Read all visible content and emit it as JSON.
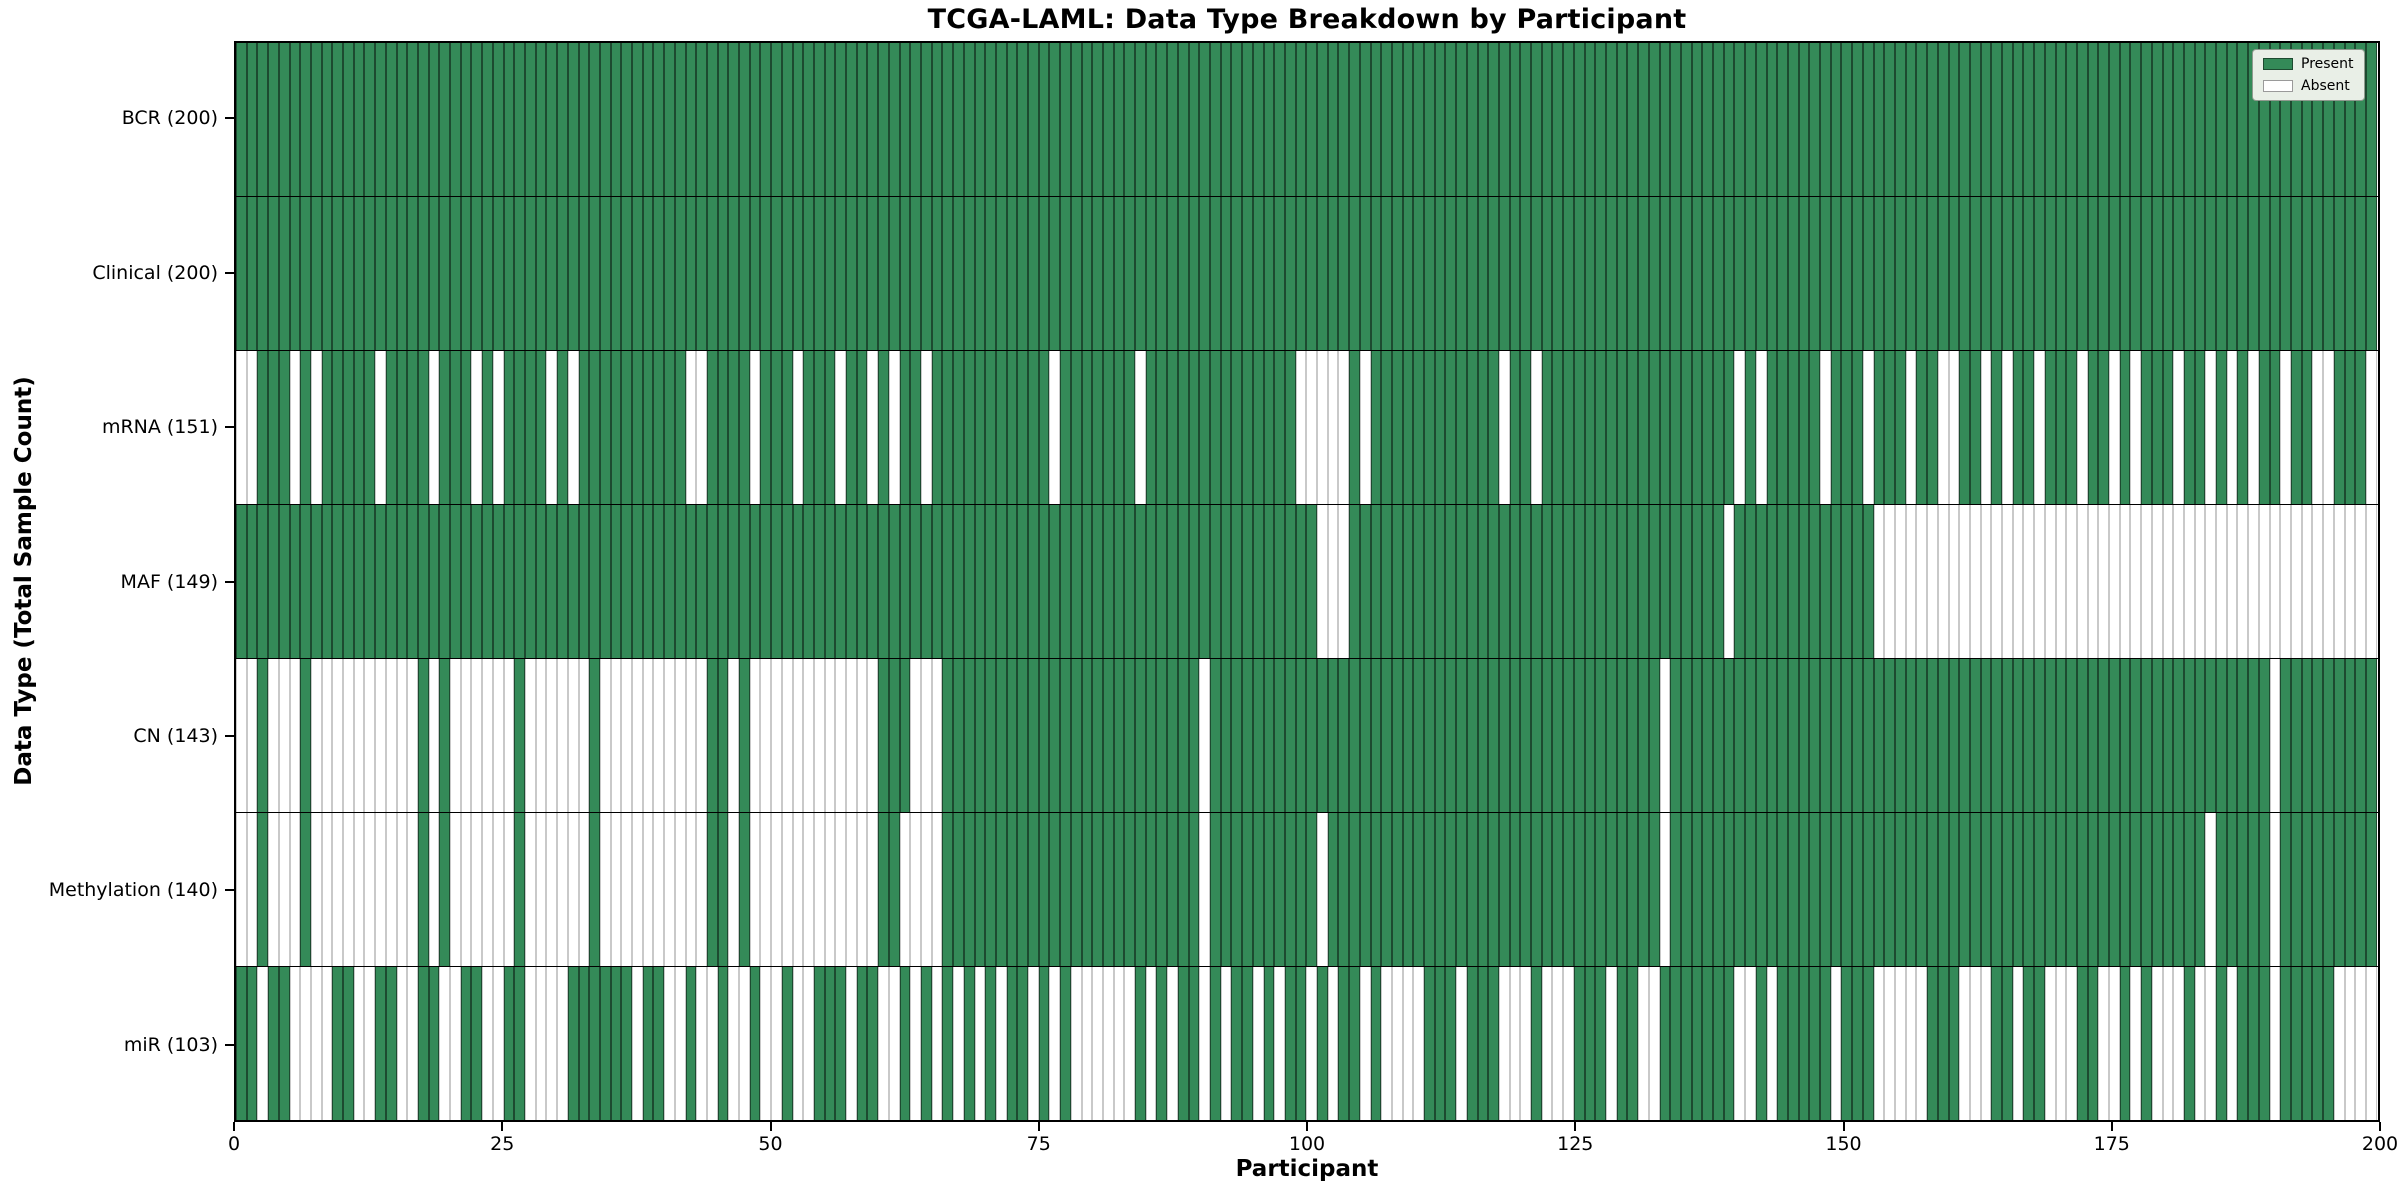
{
  "title": "TCGA-LAML: Data Type Breakdown by Participant",
  "legend": {
    "present_label": "Present",
    "absent_label": "Absent"
  },
  "chart_data": {
    "type": "heatmap",
    "title": "TCGA-LAML: Data Type Breakdown by Participant",
    "xlabel": "Participant",
    "ylabel": "Data Type (Total Sample Count)",
    "x_ticks": [
      0,
      25,
      50,
      75,
      100,
      125,
      150,
      175,
      200
    ],
    "x_range": [
      0,
      200
    ],
    "n_participants": 200,
    "grid": false,
    "legend_position": "upper right",
    "legend_entries": [
      "Present",
      "Absent"
    ],
    "colors": {
      "present": "#348a58",
      "absent": "#ffffff",
      "present_cell_edge": "#1d4a30",
      "absent_cell_edge": "#c9c9c9",
      "legend_background": "#e9efe7"
    },
    "rows": [
      {
        "label": "BCR (200)",
        "data_type": "BCR",
        "total_present": 200,
        "absent": []
      },
      {
        "label": "Clinical (200)",
        "data_type": "Clinical",
        "total_present": 200,
        "absent": []
      },
      {
        "label": "mRNA (151)",
        "data_type": "mRNA",
        "total_present": 151,
        "absent": [
          0,
          1,
          5,
          7,
          13,
          18,
          22,
          24,
          29,
          31,
          42,
          43,
          48,
          52,
          56,
          59,
          61,
          64,
          76,
          84,
          99,
          100,
          101,
          102,
          103,
          105,
          118,
          121,
          140,
          142,
          148,
          152,
          156,
          159,
          160,
          163,
          165,
          168,
          172,
          175,
          177,
          181,
          184,
          186,
          188,
          191,
          194,
          195,
          199
        ]
      },
      {
        "label": "MAF (149)",
        "data_type": "MAF",
        "total_present": 149,
        "absent": [
          101,
          102,
          103,
          139,
          153,
          154,
          155,
          156,
          157,
          158,
          159,
          160,
          161,
          162,
          163,
          164,
          165,
          166,
          167,
          168,
          169,
          170,
          171,
          172,
          173,
          174,
          175,
          176,
          177,
          178,
          179,
          180,
          181,
          182,
          183,
          184,
          185,
          186,
          187,
          188,
          189,
          190,
          191,
          192,
          193,
          194,
          195,
          196,
          197,
          198,
          199
        ]
      },
      {
        "label": "CN (143)",
        "data_type": "CN",
        "total_present": 143,
        "absent": [
          0,
          1,
          3,
          4,
          5,
          7,
          8,
          9,
          10,
          11,
          12,
          13,
          14,
          15,
          16,
          18,
          20,
          21,
          22,
          23,
          24,
          25,
          27,
          28,
          29,
          30,
          31,
          32,
          34,
          35,
          36,
          37,
          38,
          39,
          40,
          41,
          42,
          43,
          46,
          48,
          49,
          50,
          51,
          52,
          53,
          54,
          55,
          56,
          57,
          58,
          59,
          63,
          64,
          65,
          90,
          133,
          190
        ]
      },
      {
        "label": "Methylation (140)",
        "data_type": "Methylation",
        "total_present": 140,
        "absent": [
          0,
          1,
          3,
          4,
          5,
          7,
          8,
          9,
          10,
          11,
          12,
          13,
          14,
          15,
          16,
          18,
          20,
          21,
          22,
          23,
          24,
          25,
          27,
          28,
          29,
          30,
          31,
          32,
          34,
          35,
          36,
          37,
          38,
          39,
          40,
          41,
          42,
          43,
          46,
          48,
          49,
          50,
          51,
          52,
          53,
          54,
          55,
          56,
          57,
          58,
          59,
          62,
          63,
          64,
          65,
          90,
          101,
          133,
          184,
          190
        ]
      },
      {
        "label": "miR (103)",
        "data_type": "miR",
        "total_present": 103,
        "absent": [
          2,
          5,
          6,
          7,
          8,
          11,
          12,
          15,
          16,
          19,
          20,
          23,
          24,
          27,
          28,
          29,
          30,
          37,
          40,
          41,
          43,
          44,
          46,
          47,
          49,
          50,
          52,
          53,
          57,
          60,
          61,
          63,
          65,
          67,
          69,
          71,
          74,
          76,
          78,
          79,
          80,
          81,
          82,
          83,
          85,
          87,
          90,
          92,
          95,
          97,
          100,
          102,
          105,
          107,
          108,
          109,
          110,
          114,
          118,
          119,
          120,
          122,
          123,
          124,
          128,
          131,
          132,
          140,
          141,
          143,
          149,
          153,
          154,
          155,
          156,
          157,
          161,
          162,
          163,
          166,
          169,
          170,
          171,
          174,
          175,
          177,
          179,
          180,
          181,
          183,
          184,
          186,
          190,
          196,
          197,
          198,
          199
        ]
      }
    ]
  }
}
